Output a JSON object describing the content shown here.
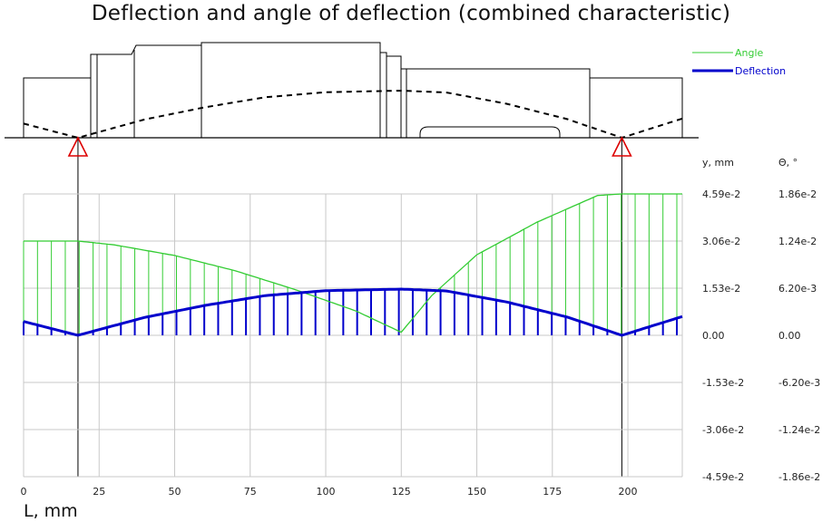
{
  "chart_data": {
    "type": "line",
    "title": "Deflection and angle of deflection (combined characteristic)",
    "xlabel": "L, mm",
    "xlim": [
      0,
      218
    ],
    "x_ticks": [
      "0",
      "25",
      "50",
      "75",
      "100",
      "125",
      "150",
      "175",
      "200"
    ],
    "y_left_label": "y, mm",
    "y_right_label": "Θ, °",
    "y_left_ticks": [
      "4.59e-2",
      "3.06e-2",
      "1.53e-2",
      "0.00",
      "-1.53e-2",
      "-3.06e-2",
      "-4.59e-2"
    ],
    "y_right_ticks": [
      "1.86e-2",
      "1.24e-2",
      "6.20e-3",
      "0.00",
      "-6.20e-3",
      "-1.24e-2",
      "-1.86e-2"
    ],
    "ylim_left": [
      -0.0459,
      0.0459
    ],
    "ylim_right": [
      -0.0186,
      0.0186
    ],
    "grid": true,
    "legend": "top-right",
    "supports_x": [
      18,
      198
    ],
    "colors": {
      "angle": "#33cc33",
      "deflection": "#0000cc",
      "support": "#dd0000",
      "grid": "#c8c8c8"
    },
    "series": [
      {
        "name": "Angle",
        "axis": "right",
        "x": [
          0,
          18,
          30,
          50,
          70,
          90,
          110,
          125,
          135,
          150,
          170,
          190,
          198,
          218
        ],
        "values": [
          0.0124,
          0.0124,
          0.0119,
          0.0105,
          0.0085,
          0.006,
          0.0032,
          0.0004,
          0.0052,
          0.0106,
          0.0149,
          0.0184,
          0.0186,
          0.0186
        ]
      },
      {
        "name": "Deflection",
        "axis": "left",
        "x": [
          0,
          18,
          40,
          60,
          80,
          100,
          125,
          140,
          160,
          180,
          198,
          218
        ],
        "values": [
          0.0045,
          0.0,
          0.0058,
          0.0097,
          0.0129,
          0.0145,
          0.015,
          0.0144,
          0.0108,
          0.0059,
          0.0,
          0.0061
        ]
      }
    ]
  }
}
